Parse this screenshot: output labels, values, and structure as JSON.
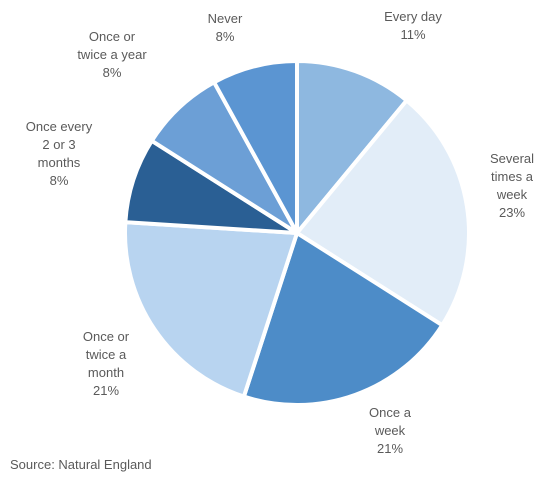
{
  "chart_data": {
    "type": "pie",
    "title": "",
    "slices": [
      {
        "name": "Every day",
        "label_lines": [
          "Every day"
        ],
        "value": 11,
        "value_label": "11%",
        "color": "#8eb8e0"
      },
      {
        "name": "Several times a week",
        "label_lines": [
          "Several",
          "times a",
          "week"
        ],
        "value": 23,
        "value_label": "23%",
        "color": "#e2edf8"
      },
      {
        "name": "Once a week",
        "label_lines": [
          "Once a",
          "week"
        ],
        "value": 21,
        "value_label": "21%",
        "color": "#4d8cc8"
      },
      {
        "name": "Once or twice a month",
        "label_lines": [
          "Once or",
          "twice a",
          "month"
        ],
        "value": 21,
        "value_label": "21%",
        "color": "#b8d4f0"
      },
      {
        "name": "Once every 2 or 3 months",
        "label_lines": [
          "Once every",
          "2 or 3",
          "months"
        ],
        "value": 8,
        "value_label": "8%",
        "color": "#2a5f94"
      },
      {
        "name": "Once or twice a year",
        "label_lines": [
          "Once or",
          "twice a year"
        ],
        "value": 8,
        "value_label": "8%",
        "color": "#6c9fd6"
      },
      {
        "name": "Never",
        "label_lines": [
          "Never"
        ],
        "value": 8,
        "value_label": "8%",
        "color": "#5b95d2"
      }
    ],
    "start_angle_deg": 0,
    "direction": "clockwise"
  },
  "source": "Source: Natural England"
}
